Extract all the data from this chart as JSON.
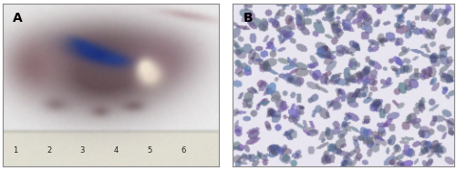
{
  "fig_width": 5.0,
  "fig_height": 1.87,
  "dpi": 100,
  "background_color": "#ffffff",
  "label_A": "A",
  "label_B": "B",
  "label_fontsize": 10,
  "label_fontweight": "bold",
  "label_color": "#000000",
  "border_color": "#888888",
  "border_linewidth": 0.8
}
